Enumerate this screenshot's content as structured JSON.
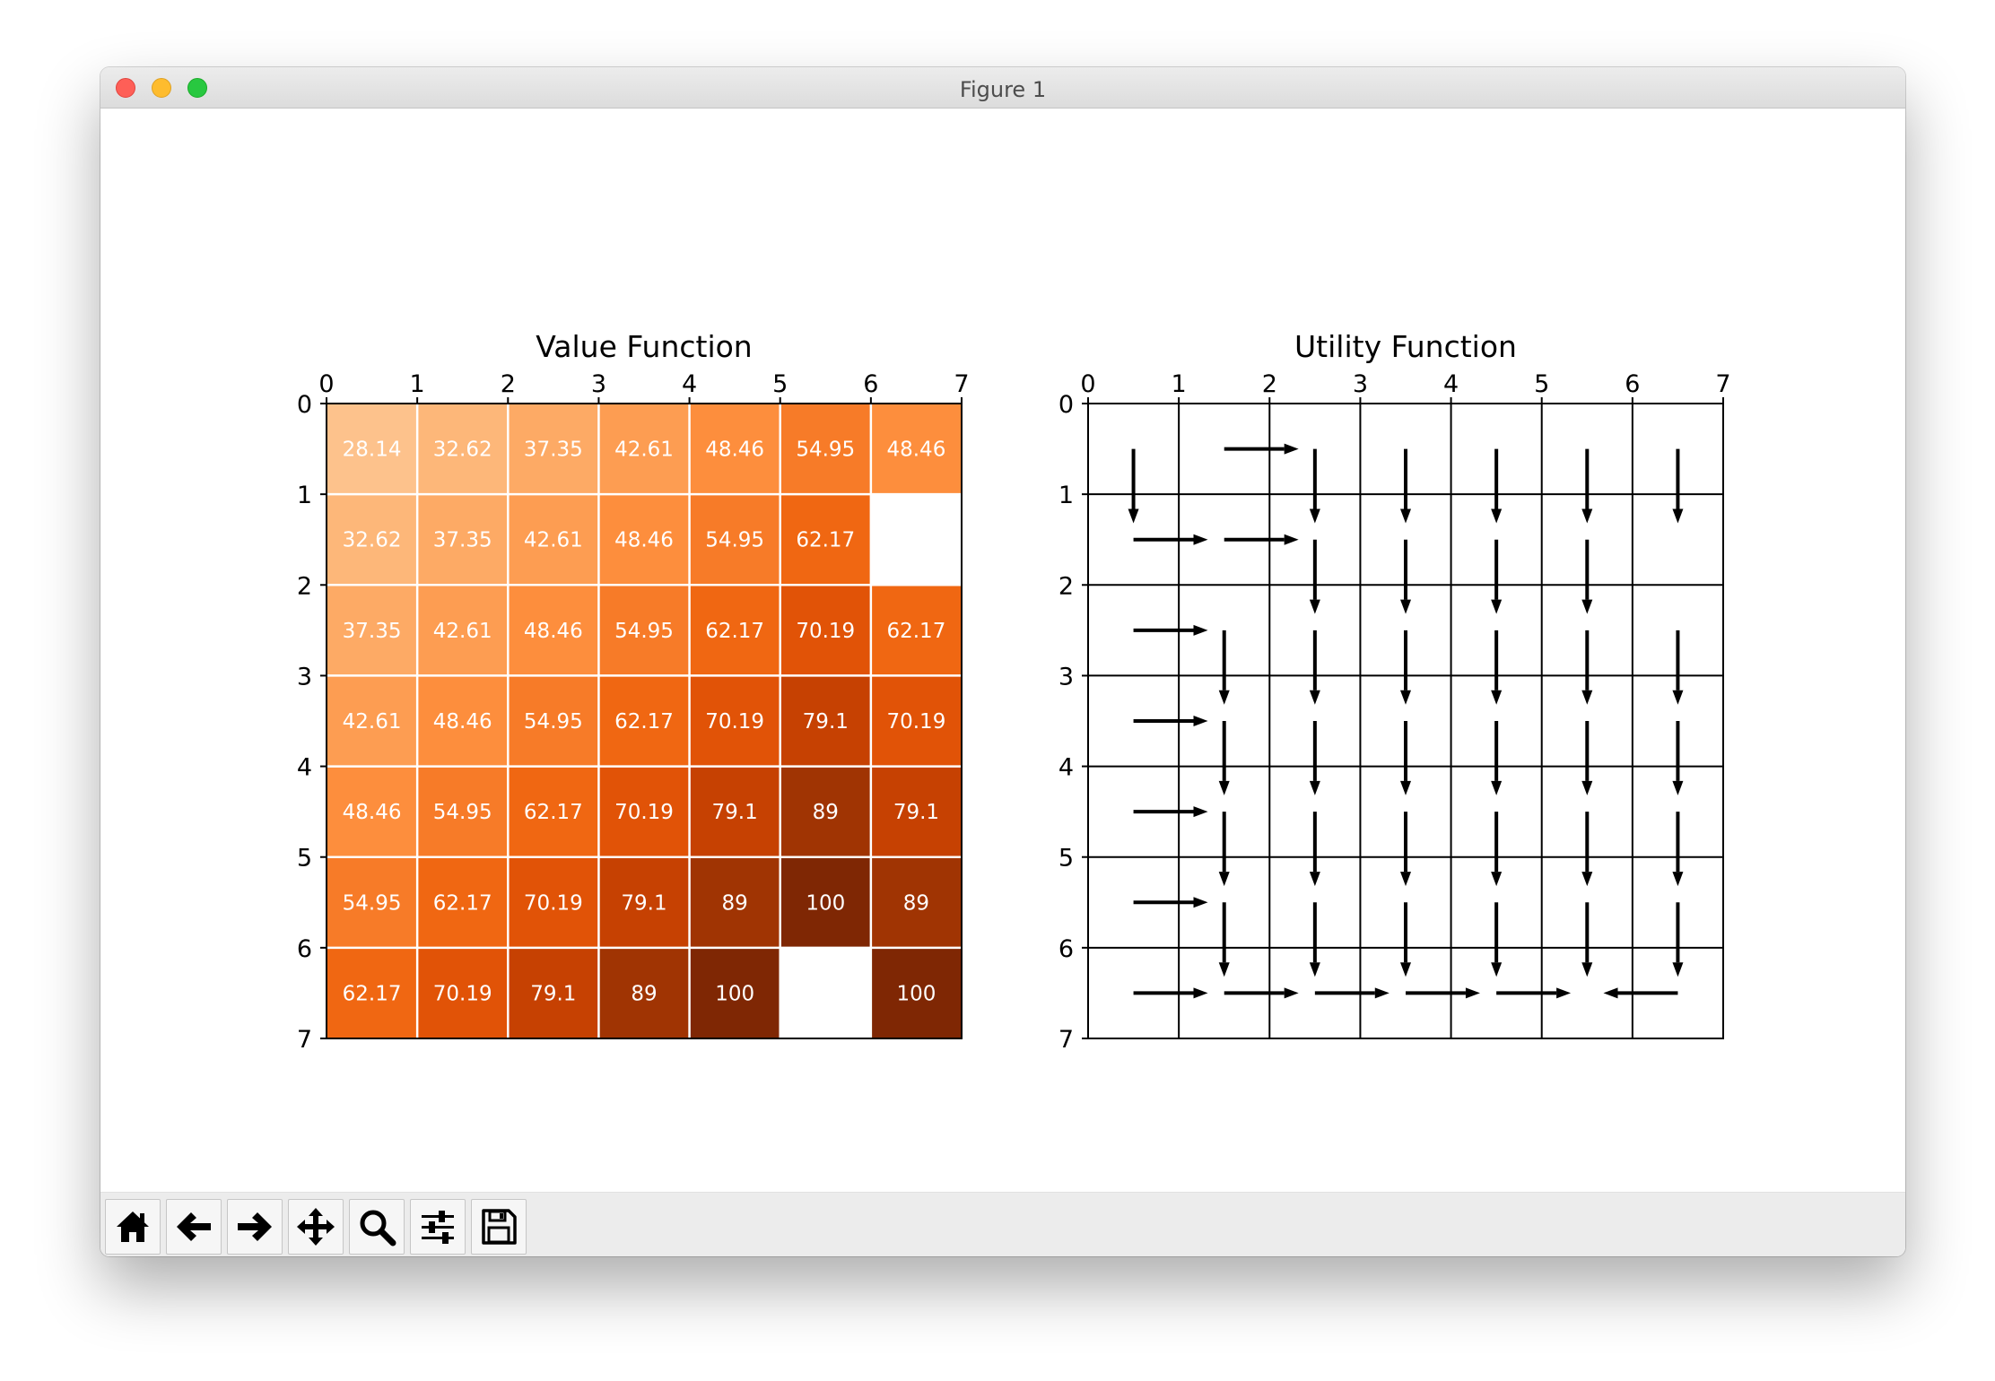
{
  "window": {
    "title": "Figure 1"
  },
  "toolbar": {
    "buttons": [
      {
        "name": "home-button",
        "icon": "home-icon"
      },
      {
        "name": "back-button",
        "icon": "arrow-left-icon"
      },
      {
        "name": "forward-button",
        "icon": "arrow-right-icon"
      },
      {
        "name": "pan-button",
        "icon": "move-icon"
      },
      {
        "name": "zoom-button",
        "icon": "magnifier-icon"
      },
      {
        "name": "configure-subplots-button",
        "icon": "sliders-icon"
      },
      {
        "name": "save-button",
        "icon": "floppy-disk-icon"
      }
    ]
  },
  "chart_data": [
    {
      "type": "heatmap",
      "title": "Value Function",
      "xticks": [
        "0",
        "1",
        "2",
        "3",
        "4",
        "5",
        "6",
        "7"
      ],
      "yticks": [
        "0",
        "1",
        "2",
        "3",
        "4",
        "5",
        "6",
        "7"
      ],
      "xlim": [
        0,
        7
      ],
      "ylim": [
        7,
        0
      ],
      "colormap": "Oranges",
      "values": [
        [
          28.14,
          32.62,
          37.35,
          42.61,
          48.46,
          54.95,
          48.46
        ],
        [
          32.62,
          37.35,
          42.61,
          48.46,
          54.95,
          62.17,
          null
        ],
        [
          37.35,
          42.61,
          48.46,
          54.95,
          62.17,
          70.19,
          62.17
        ],
        [
          42.61,
          48.46,
          54.95,
          62.17,
          70.19,
          79.1,
          70.19
        ],
        [
          48.46,
          54.95,
          62.17,
          70.19,
          79.1,
          89.0,
          79.1
        ],
        [
          54.95,
          62.17,
          70.19,
          79.1,
          89.0,
          100.0,
          89.0
        ],
        [
          62.17,
          70.19,
          79.1,
          89.0,
          100.0,
          null,
          100.0
        ]
      ],
      "grid": true
    },
    {
      "type": "quiver",
      "title": "Utility Function",
      "xticks": [
        "0",
        "1",
        "2",
        "3",
        "4",
        "5",
        "6",
        "7"
      ],
      "yticks": [
        "0",
        "1",
        "2",
        "3",
        "4",
        "5",
        "6",
        "7"
      ],
      "xlim": [
        0,
        7
      ],
      "ylim": [
        7,
        0
      ],
      "actions": [
        [
          "down",
          "right",
          "down",
          "down",
          "down",
          "down",
          "down"
        ],
        [
          "right",
          "right",
          "down",
          "down",
          "down",
          "down",
          null
        ],
        [
          "right",
          "down",
          "down",
          "down",
          "down",
          "down",
          "down"
        ],
        [
          "right",
          "down",
          "down",
          "down",
          "down",
          "down",
          "down"
        ],
        [
          "right",
          "down",
          "down",
          "down",
          "down",
          "down",
          "down"
        ],
        [
          "right",
          "down",
          "down",
          "down",
          "down",
          "down",
          "down"
        ],
        [
          "right",
          "right",
          "right",
          "right",
          "right",
          null,
          "left"
        ]
      ],
      "grid": true
    }
  ]
}
